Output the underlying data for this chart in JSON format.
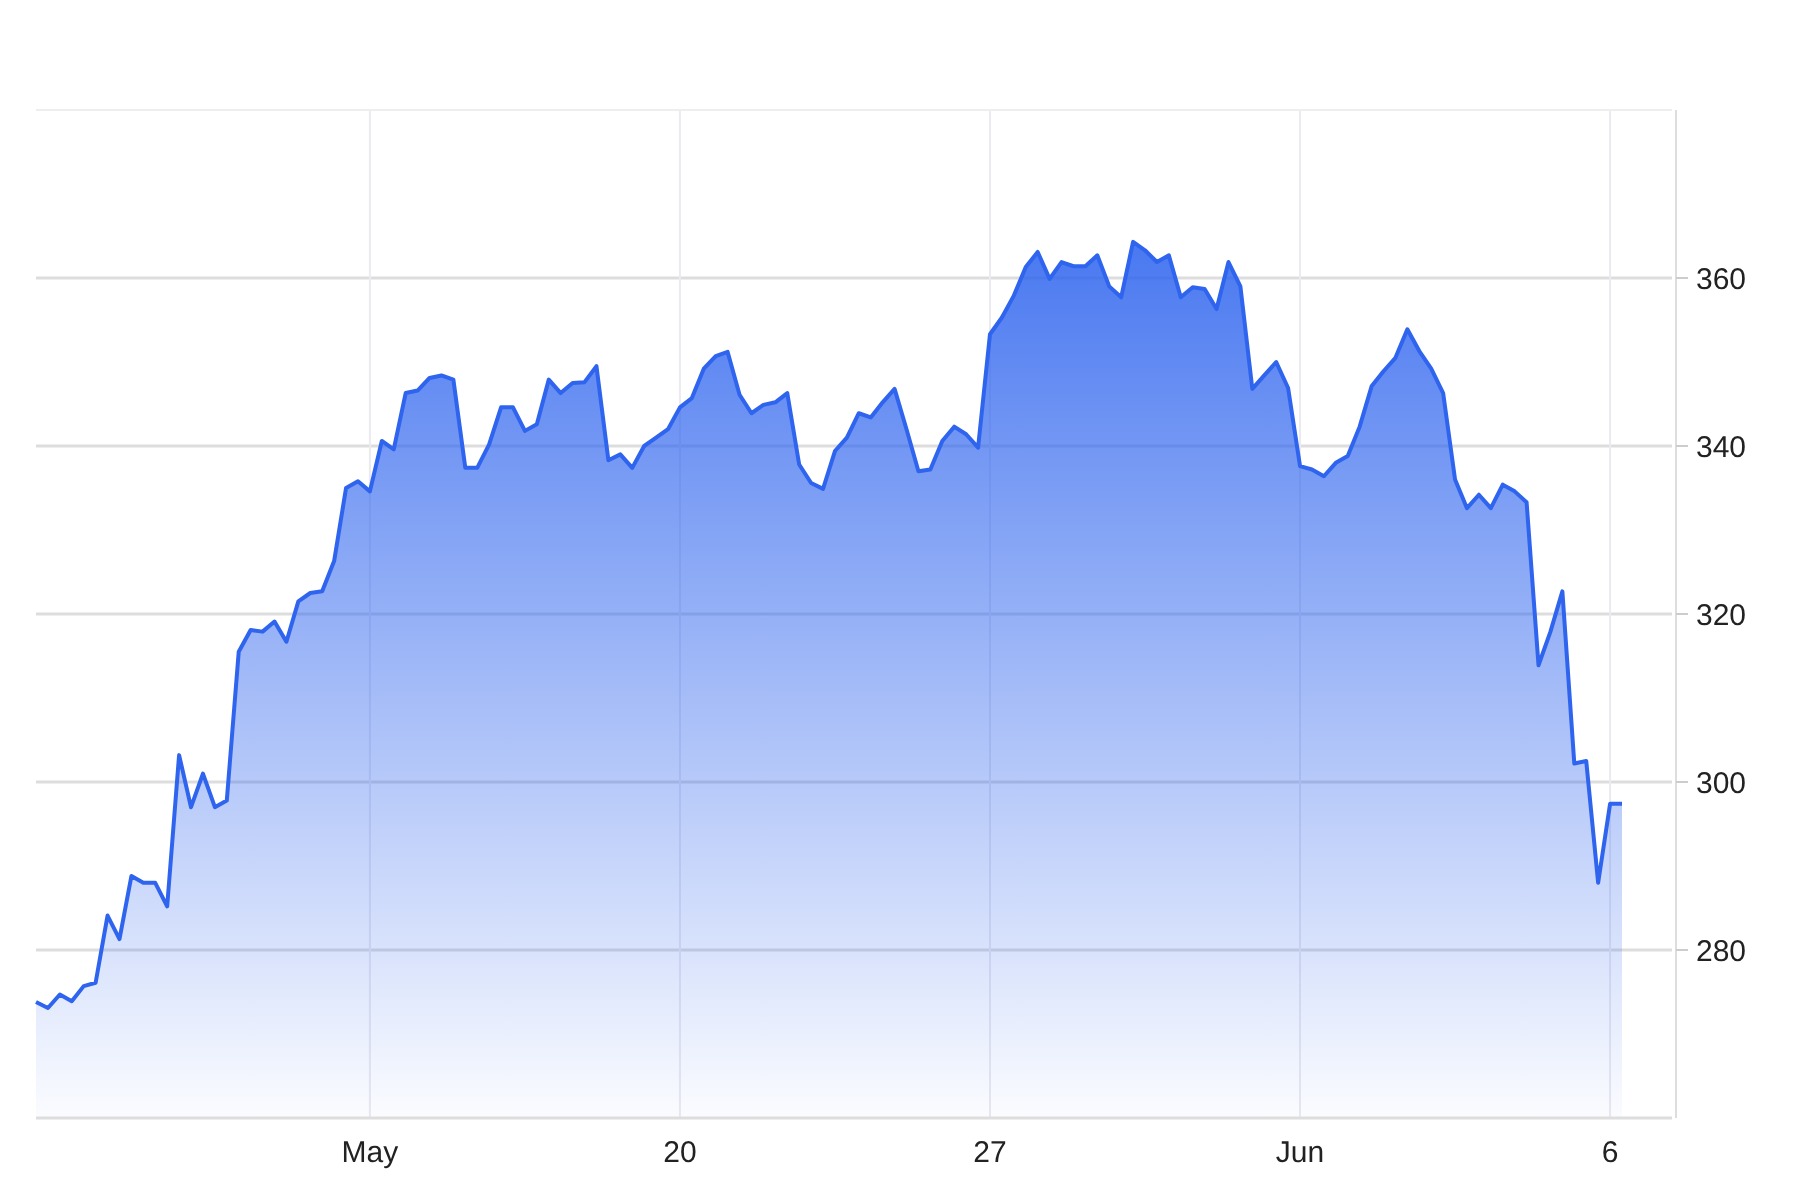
{
  "chart_data": {
    "type": "area",
    "ylim": [
      260,
      380
    ],
    "categories": [
      null,
      null,
      null,
      null,
      null,
      null,
      null,
      null,
      null,
      null,
      null,
      null,
      null,
      null,
      null,
      null,
      null,
      null,
      null,
      null,
      null,
      null,
      null,
      null,
      null,
      null,
      null,
      null,
      "May",
      null,
      null,
      null,
      null,
      null,
      null,
      null,
      null,
      null,
      null,
      null,
      null,
      null,
      null,
      null,
      null,
      null,
      null,
      null,
      null,
      null,
      null,
      null,
      null,
      null,
      "20",
      null,
      null,
      null,
      null,
      null,
      null,
      null,
      null,
      null,
      null,
      null,
      null,
      null,
      null,
      null,
      null,
      null,
      null,
      null,
      null,
      null,
      null,
      null,
      null,
      null,
      "27",
      null,
      null,
      null,
      null,
      null,
      null,
      null,
      null,
      null,
      null,
      null,
      null,
      null,
      null,
      null,
      null,
      null,
      null,
      null,
      null,
      null,
      null,
      null,
      null,
      null,
      "Jun",
      null,
      null,
      null,
      null,
      null,
      null,
      null,
      null,
      null,
      null,
      null,
      null,
      null,
      null,
      null,
      null,
      null,
      null,
      null,
      null,
      null,
      null,
      null,
      null,
      null,
      "6",
      null
    ],
    "yticks": [
      280,
      300,
      320,
      340,
      360
    ],
    "grid": true,
    "series": [
      {
        "color": "#2e64ee",
        "values": [
          273.8,
          273.1,
          274.7,
          273.9,
          275.7,
          276.1,
          284.1,
          281.3,
          288.8,
          288.0,
          288.0,
          285.2,
          303.2,
          297.0,
          301.0,
          297.0,
          297.8,
          315.5,
          318.1,
          317.9,
          319.1,
          316.7,
          321.5,
          322.5,
          322.7,
          326.3,
          335.0,
          335.8,
          334.6,
          340.6,
          339.6,
          346.3,
          346.6,
          348.1,
          348.4,
          347.9,
          337.4,
          337.4,
          340.2,
          344.6,
          344.6,
          341.8,
          342.6,
          347.9,
          346.3,
          347.5,
          347.6,
          349.5,
          338.3,
          339.0,
          337.4,
          340.0,
          341.0,
          342.0,
          344.6,
          345.7,
          349.2,
          350.7,
          351.2,
          346.1,
          343.9,
          344.9,
          345.2,
          346.3,
          337.8,
          335.6,
          334.9,
          339.4,
          341.0,
          343.9,
          343.4,
          345.2,
          346.8,
          342.0,
          337.0,
          337.2,
          340.6,
          342.3,
          341.4,
          339.8,
          353.3,
          355.3,
          357.9,
          361.3,
          363.1,
          359.9,
          361.9,
          361.4,
          361.4,
          362.7,
          359.0,
          357.7,
          364.3,
          363.3,
          361.9,
          362.7,
          357.7,
          358.9,
          358.7,
          356.3,
          361.9,
          359.0,
          346.8,
          348.4,
          350.0,
          346.9,
          337.6,
          337.2,
          336.4,
          338.0,
          338.8,
          342.3,
          347.1,
          348.9,
          350.5,
          353.9,
          351.3,
          349.2,
          346.3,
          336.0,
          332.6,
          334.2,
          332.6,
          335.4,
          334.6,
          333.3,
          313.9,
          317.9,
          322.7,
          302.2,
          302.5,
          288.0,
          297.4,
          297.4
        ]
      }
    ]
  }
}
